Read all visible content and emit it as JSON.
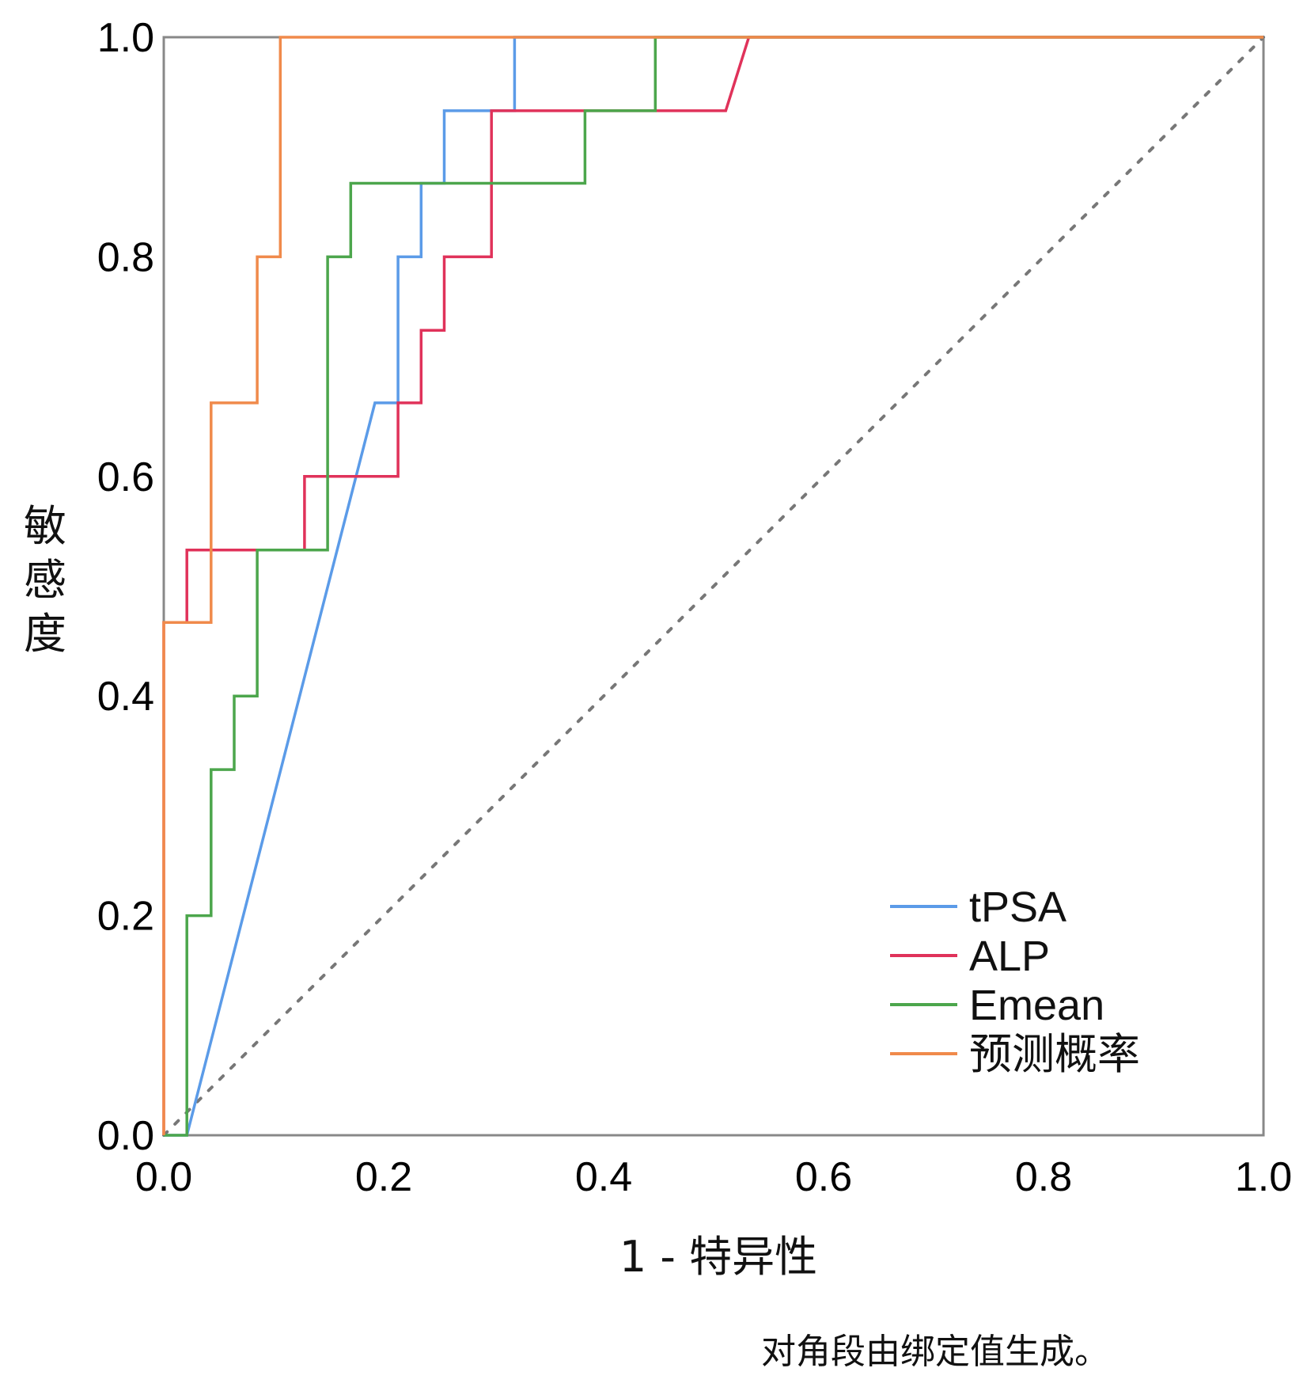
{
  "chart_data": {
    "type": "line",
    "title": "",
    "xlabel": "1 - 特异性",
    "ylabel": "敏感度",
    "xlim": [
      0,
      1
    ],
    "ylim": [
      0,
      1
    ],
    "x_ticks": [
      0.0,
      0.2,
      0.4,
      0.6,
      0.8,
      1.0
    ],
    "y_ticks": [
      0.0,
      0.2,
      0.4,
      0.6,
      0.8,
      1.0
    ],
    "x_tick_labels": [
      "0.0",
      "0.2",
      "0.4",
      "0.6",
      "0.8",
      "1.0"
    ],
    "y_tick_labels": [
      "0.0",
      "0.2",
      "0.4",
      "0.6",
      "0.8",
      "1.0"
    ],
    "grid": false,
    "legend_position": "bottom-right",
    "reference_line": {
      "style": "dashed",
      "color": "#777777",
      "points": [
        [
          0,
          0
        ],
        [
          1,
          1
        ]
      ]
    },
    "footnote": "对角段由绑定值生成。",
    "series": [
      {
        "name": "tPSA",
        "color": "#5B9BE8",
        "points": [
          [
            0,
            0
          ],
          [
            0.021,
            0
          ],
          [
            0.192,
            0.667
          ],
          [
            0.213,
            0.667
          ],
          [
            0.213,
            0.8
          ],
          [
            0.234,
            0.8
          ],
          [
            0.234,
            0.867
          ],
          [
            0.255,
            0.867
          ],
          [
            0.255,
            0.933
          ],
          [
            0.319,
            0.933
          ],
          [
            0.319,
            1
          ],
          [
            1,
            1
          ]
        ]
      },
      {
        "name": "ALP",
        "color": "#E0325A",
        "points": [
          [
            0,
            0
          ],
          [
            0,
            0.467
          ],
          [
            0.021,
            0.467
          ],
          [
            0.021,
            0.533
          ],
          [
            0.128,
            0.533
          ],
          [
            0.128,
            0.6
          ],
          [
            0.213,
            0.6
          ],
          [
            0.213,
            0.667
          ],
          [
            0.234,
            0.667
          ],
          [
            0.234,
            0.733
          ],
          [
            0.255,
            0.733
          ],
          [
            0.255,
            0.8
          ],
          [
            0.298,
            0.8
          ],
          [
            0.298,
            0.933
          ],
          [
            0.511,
            0.933
          ],
          [
            0.532,
            1
          ],
          [
            1,
            1
          ]
        ]
      },
      {
        "name": "Emean",
        "color": "#4CA64C",
        "points": [
          [
            0,
            0
          ],
          [
            0.021,
            0
          ],
          [
            0.021,
            0.2
          ],
          [
            0.043,
            0.2
          ],
          [
            0.043,
            0.333
          ],
          [
            0.064,
            0.333
          ],
          [
            0.064,
            0.4
          ],
          [
            0.085,
            0.4
          ],
          [
            0.085,
            0.533
          ],
          [
            0.149,
            0.533
          ],
          [
            0.149,
            0.8
          ],
          [
            0.17,
            0.8
          ],
          [
            0.17,
            0.867
          ],
          [
            0.383,
            0.867
          ],
          [
            0.383,
            0.933
          ],
          [
            0.447,
            0.933
          ],
          [
            0.447,
            1
          ],
          [
            1,
            1
          ]
        ]
      },
      {
        "name": "预测概率",
        "color": "#F08A4B",
        "points": [
          [
            0,
            0
          ],
          [
            0,
            0.467
          ],
          [
            0.043,
            0.467
          ],
          [
            0.043,
            0.667
          ],
          [
            0.085,
            0.667
          ],
          [
            0.085,
            0.8
          ],
          [
            0.106,
            0.8
          ],
          [
            0.106,
            1
          ],
          [
            1,
            1
          ]
        ]
      }
    ]
  }
}
